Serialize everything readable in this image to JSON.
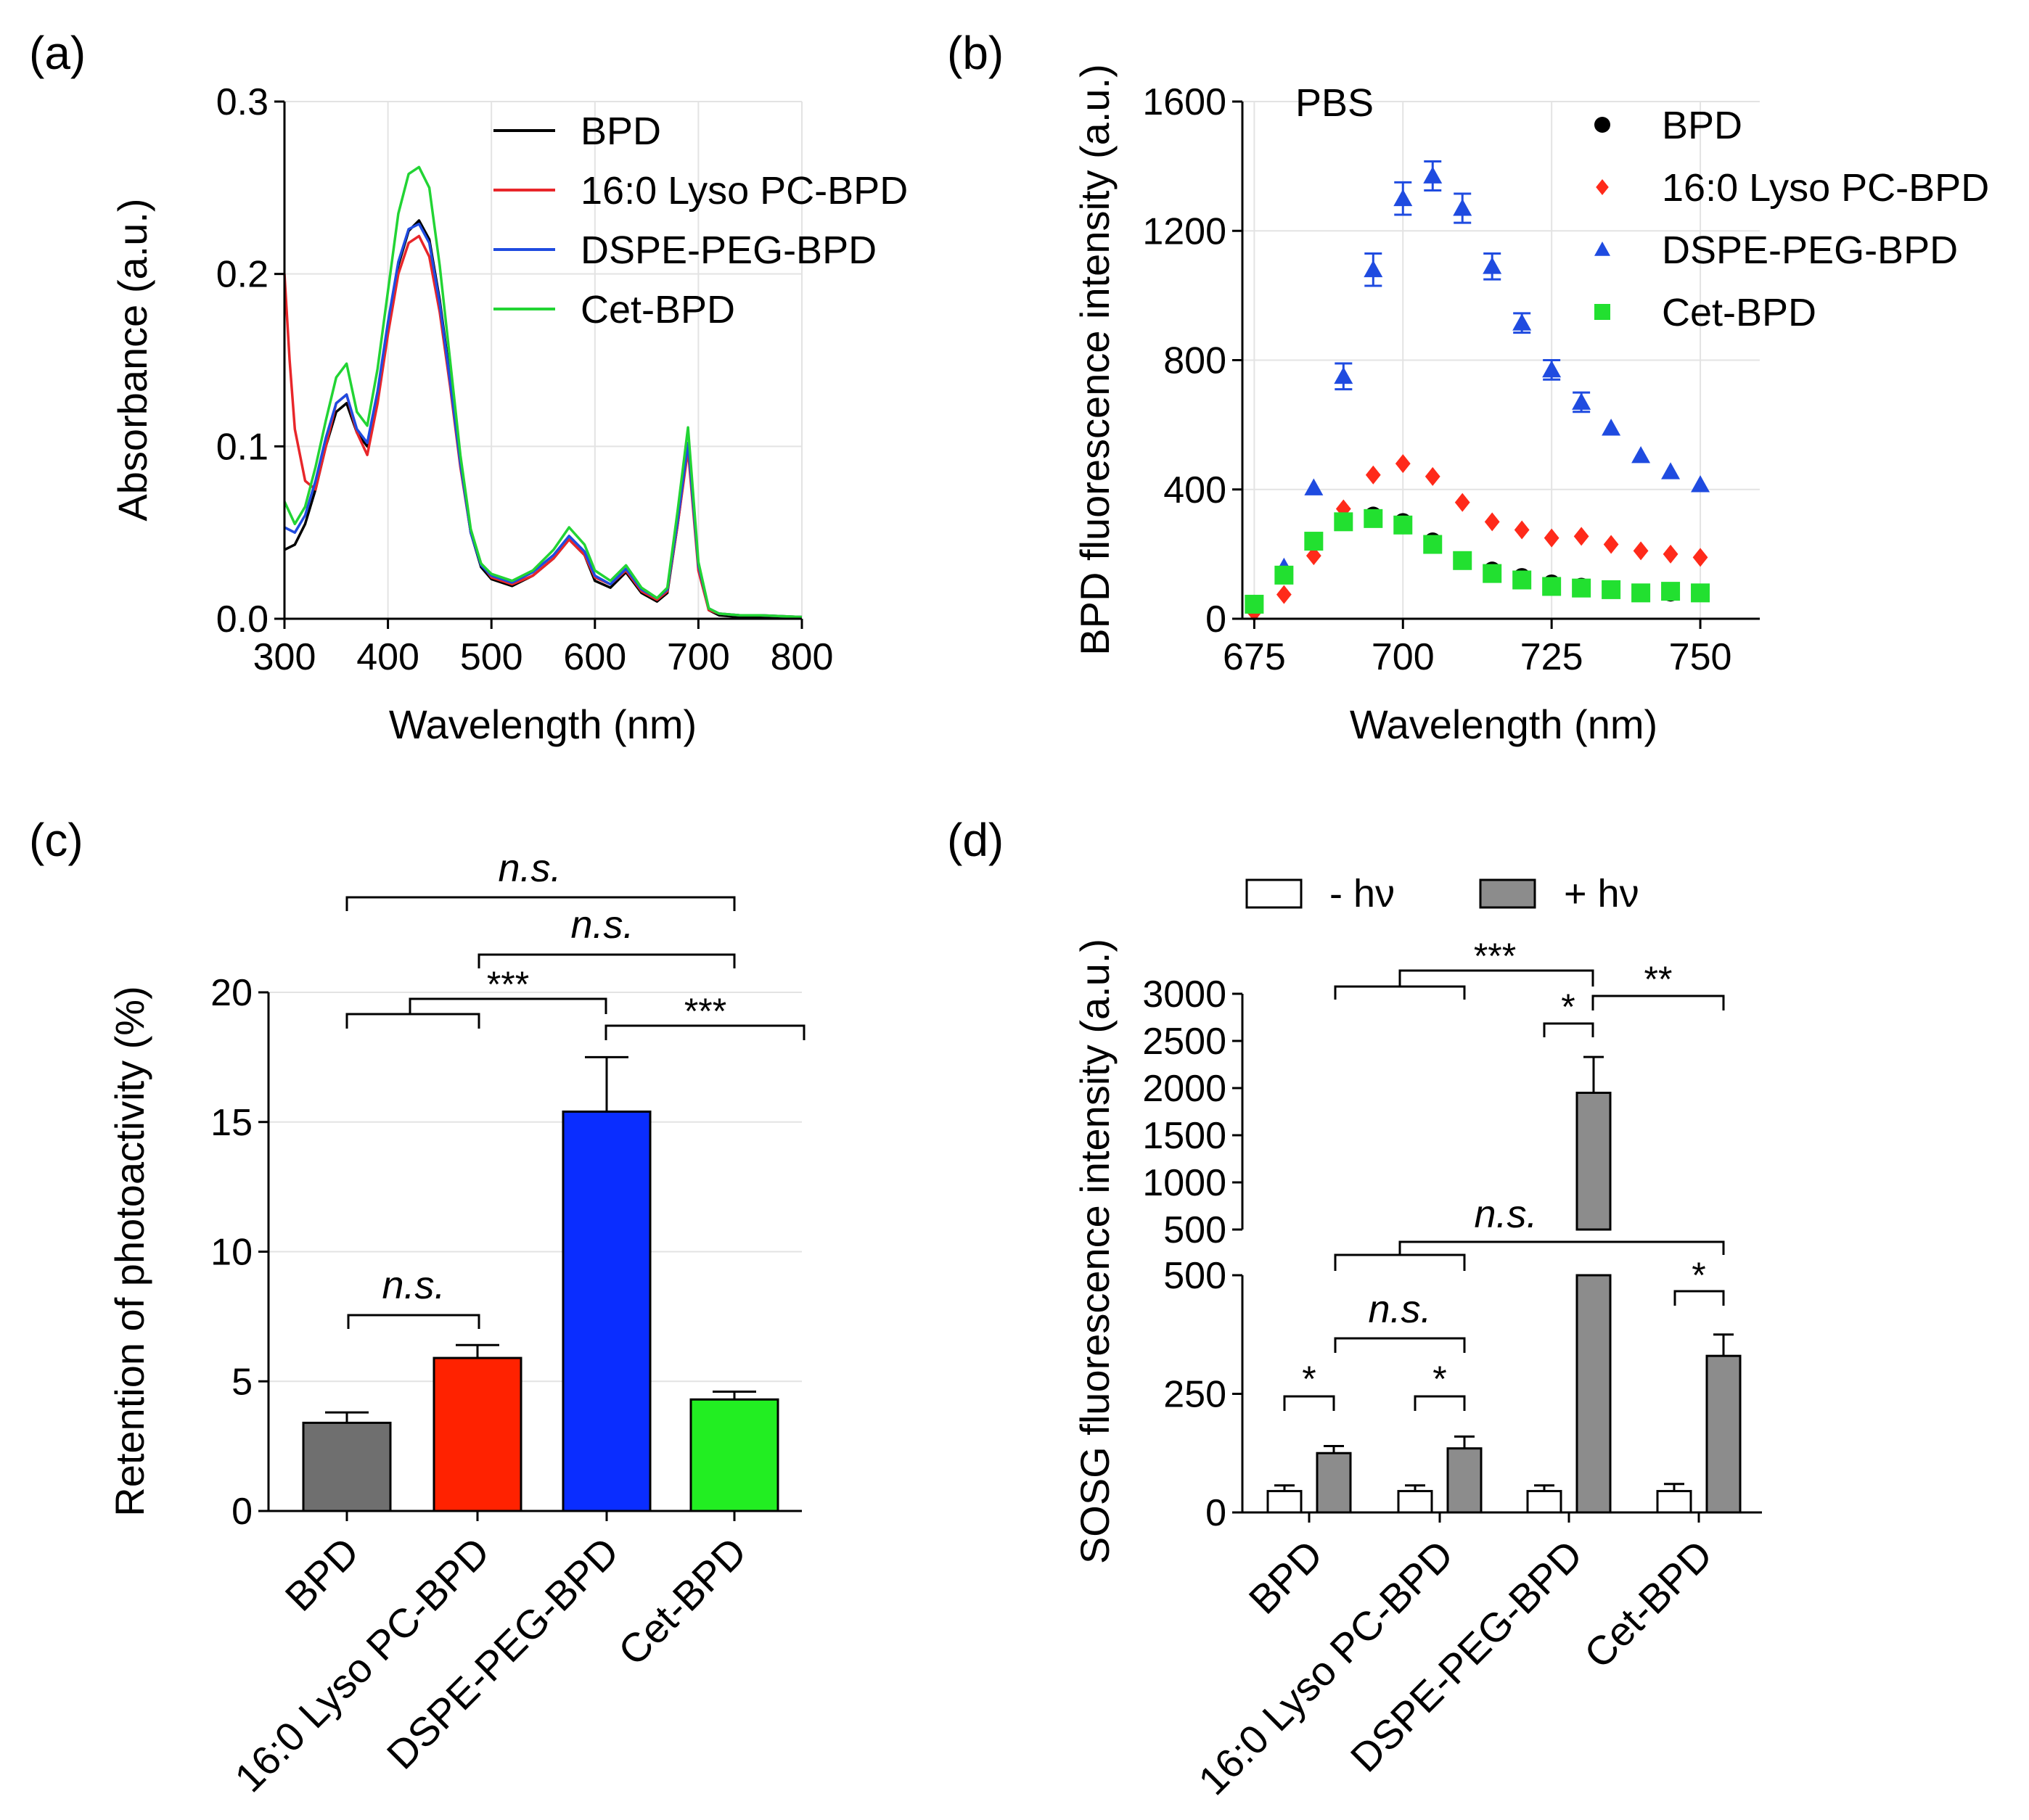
{
  "chart_data": [
    {
      "panel": "(a)",
      "type": "line",
      "xlabel": "Wavelength (nm)",
      "ylabel": "Absorbance (a.u.)",
      "xlim": [
        300,
        800
      ],
      "ylim": [
        0,
        0.3
      ],
      "xticks": [
        "300",
        "400",
        "500",
        "600",
        "700",
        "800"
      ],
      "yticks": [
        "0.0",
        "0.1",
        "0.2",
        "0.3"
      ],
      "grid": true,
      "legend_position": "top-right",
      "series": [
        {
          "name": "BPD",
          "color": "#000000",
          "x": [
            300,
            310,
            320,
            330,
            340,
            350,
            360,
            370,
            380,
            390,
            400,
            410,
            420,
            430,
            440,
            450,
            460,
            470,
            480,
            490,
            500,
            520,
            540,
            560,
            575,
            590,
            600,
            615,
            630,
            645,
            660,
            670,
            680,
            690,
            700,
            710,
            720,
            740,
            760,
            800
          ],
          "y": [
            0.04,
            0.043,
            0.055,
            0.075,
            0.1,
            0.12,
            0.125,
            0.108,
            0.1,
            0.13,
            0.17,
            0.205,
            0.225,
            0.231,
            0.22,
            0.185,
            0.14,
            0.09,
            0.05,
            0.03,
            0.023,
            0.019,
            0.025,
            0.035,
            0.046,
            0.037,
            0.022,
            0.018,
            0.027,
            0.015,
            0.01,
            0.015,
            0.055,
            0.1,
            0.03,
            0.005,
            0.002,
            0.001,
            0.001,
            0.001
          ]
        },
        {
          "name": "16:0 Lyso PC-BPD",
          "color": "#e8262a",
          "x": [
            300,
            305,
            310,
            320,
            330,
            340,
            350,
            360,
            370,
            380,
            390,
            400,
            410,
            420,
            430,
            440,
            450,
            460,
            470,
            480,
            490,
            500,
            520,
            540,
            560,
            575,
            590,
            600,
            615,
            630,
            645,
            660,
            670,
            680,
            690,
            700,
            710,
            720,
            740,
            760,
            800
          ],
          "y": [
            0.2,
            0.15,
            0.11,
            0.08,
            0.075,
            0.1,
            0.125,
            0.13,
            0.108,
            0.095,
            0.125,
            0.165,
            0.2,
            0.218,
            0.222,
            0.21,
            0.178,
            0.135,
            0.088,
            0.05,
            0.032,
            0.024,
            0.02,
            0.025,
            0.035,
            0.046,
            0.037,
            0.024,
            0.02,
            0.028,
            0.016,
            0.011,
            0.016,
            0.055,
            0.098,
            0.028,
            0.005,
            0.003,
            0.002,
            0.002,
            0.001
          ]
        },
        {
          "name": "DSPE-PEG-BPD",
          "color": "#1f4be0",
          "x": [
            300,
            310,
            320,
            330,
            340,
            350,
            360,
            370,
            380,
            390,
            400,
            410,
            420,
            430,
            440,
            450,
            460,
            470,
            480,
            490,
            500,
            520,
            540,
            560,
            575,
            590,
            600,
            615,
            630,
            645,
            660,
            670,
            680,
            690,
            700,
            710,
            720,
            740,
            760,
            800
          ],
          "y": [
            0.053,
            0.05,
            0.06,
            0.08,
            0.105,
            0.125,
            0.13,
            0.11,
            0.102,
            0.132,
            0.172,
            0.207,
            0.226,
            0.229,
            0.218,
            0.183,
            0.138,
            0.09,
            0.05,
            0.031,
            0.025,
            0.021,
            0.027,
            0.037,
            0.048,
            0.039,
            0.025,
            0.02,
            0.029,
            0.017,
            0.012,
            0.017,
            0.057,
            0.102,
            0.031,
            0.006,
            0.003,
            0.002,
            0.002,
            0.001
          ]
        },
        {
          "name": "Cet-BPD",
          "color": "#22d434",
          "x": [
            300,
            310,
            320,
            330,
            340,
            350,
            360,
            370,
            380,
            390,
            400,
            410,
            420,
            430,
            440,
            450,
            460,
            470,
            480,
            490,
            500,
            520,
            540,
            560,
            575,
            590,
            600,
            615,
            630,
            645,
            660,
            670,
            680,
            690,
            700,
            710,
            720,
            740,
            760,
            800
          ],
          "y": [
            0.068,
            0.055,
            0.065,
            0.088,
            0.115,
            0.14,
            0.148,
            0.12,
            0.112,
            0.145,
            0.19,
            0.235,
            0.258,
            0.262,
            0.25,
            0.205,
            0.15,
            0.095,
            0.052,
            0.032,
            0.026,
            0.022,
            0.028,
            0.04,
            0.053,
            0.043,
            0.028,
            0.022,
            0.031,
            0.018,
            0.012,
            0.018,
            0.063,
            0.111,
            0.033,
            0.006,
            0.003,
            0.002,
            0.002,
            0.001
          ]
        }
      ]
    },
    {
      "panel": "(b)",
      "type": "scatter",
      "annotation": "PBS",
      "xlabel": "Wavelength (nm)",
      "ylabel": "BPD fluorescence intensity (a.u.)",
      "xlim": [
        673,
        760
      ],
      "ylim": [
        0,
        1600
      ],
      "xticks": [
        "675",
        "700",
        "725",
        "750"
      ],
      "yticks": [
        "0",
        "400",
        "800",
        "1200",
        "1600"
      ],
      "grid": true,
      "legend_position": "top-right",
      "x": [
        675,
        680,
        685,
        690,
        695,
        700,
        705,
        710,
        715,
        720,
        725,
        730,
        735,
        740,
        745,
        750
      ],
      "series": [
        {
          "name": "BPD",
          "color": "#000000",
          "marker": "circle",
          "values": [
            40,
            140,
            240,
            300,
            320,
            300,
            240,
            180,
            150,
            130,
            110,
            100,
            90,
            80,
            80,
            80
          ],
          "errors": []
        },
        {
          "name": "16:0 Lyso PC-BPD",
          "color": "#ff2a1a",
          "marker": "diamond",
          "values": [
            20,
            75,
            195,
            340,
            445,
            480,
            440,
            360,
            300,
            275,
            250,
            255,
            230,
            210,
            200,
            190
          ],
          "errors": []
        },
        {
          "name": "DSPE-PEG-BPD",
          "color": "#1f4be0",
          "marker": "triangle",
          "values": [
            40,
            160,
            405,
            750,
            1080,
            1300,
            1370,
            1270,
            1090,
            915,
            770,
            670,
            590,
            505,
            455,
            415
          ],
          "errors": [
            0,
            0,
            0,
            40,
            50,
            50,
            45,
            45,
            40,
            30,
            30,
            30,
            0,
            0,
            0,
            0
          ]
        },
        {
          "name": "Cet-BPD",
          "color": "#22e030",
          "marker": "square",
          "values": [
            45,
            135,
            240,
            300,
            310,
            290,
            230,
            180,
            140,
            120,
            100,
            95,
            90,
            80,
            85,
            80
          ],
          "errors": []
        }
      ]
    },
    {
      "panel": "(c)",
      "type": "bar",
      "ylabel": "Retention of photoactivity (%)",
      "ylim": [
        0,
        20
      ],
      "yticks": [
        "0",
        "5",
        "10",
        "15",
        "20"
      ],
      "grid": true,
      "categories": [
        "BPD",
        "16:0 Lyso PC-BPD",
        "DSPE-PEG-BPD",
        "Cet-BPD"
      ],
      "values": [
        3.4,
        5.9,
        15.4,
        4.3
      ],
      "errors": [
        0.4,
        0.5,
        2.1,
        0.3
      ],
      "colors": [
        "#6f6f6f",
        "#ff2200",
        "#0a2dff",
        "#22ee22"
      ],
      "significance": [
        "n.s.",
        "n.s.",
        "***",
        "***",
        "n.s."
      ]
    },
    {
      "panel": "(d)",
      "type": "bar",
      "ylabel": "SOSG fluorescence intensity (a.u.)",
      "ylim_lower": [
        0,
        500
      ],
      "ylim_upper": [
        500,
        3000
      ],
      "yticks_lower": [
        "0",
        "250",
        "500"
      ],
      "yticks_upper": [
        "500",
        "1000",
        "1500",
        "2000",
        "2500",
        "3000"
      ],
      "grid": false,
      "legend_position": "top",
      "categories": [
        "BPD",
        "16:0 Lyso PC-BPD",
        "DSPE-PEG-BPD",
        "Cet-BPD"
      ],
      "series": [
        {
          "name": "- hν",
          "color": "#ffffff",
          "values": [
            45,
            45,
            45,
            45
          ],
          "errors": [
            12,
            12,
            12,
            15
          ]
        },
        {
          "name": "+ hν",
          "color": "#8c8c8c",
          "values": [
            125,
            135,
            1950,
            330
          ],
          "errors": [
            15,
            25,
            380,
            45
          ]
        }
      ],
      "significance": [
        "***",
        "**",
        "*",
        "n.s.",
        "*",
        "n.s.",
        "*",
        "*"
      ]
    }
  ],
  "panel_labels": [
    "(a)",
    "(b)",
    "(c)",
    "(d)"
  ],
  "legend_d": {
    "minus_hv": "- hν",
    "plus_hv": "+ hν"
  }
}
